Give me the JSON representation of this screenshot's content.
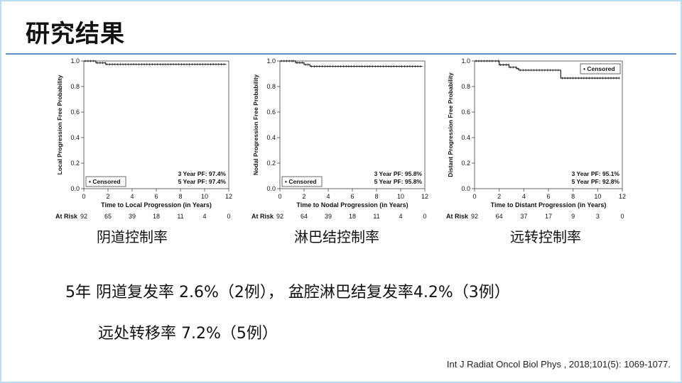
{
  "slide": {
    "title": "研究结果",
    "captions": [
      "阴道控制率",
      "淋巴结控制率",
      "远转控制率"
    ],
    "summary_line1": "5年 阴道复发率 2.6%（2例）， 盆腔淋巴结复发率4.2%（3例）",
    "summary_line2": "远处转移率 7.2%（5例）",
    "citation": "Int J Radiat Oncol Biol Phys , 2018;101(5): 1069-1077.",
    "accent_color": "#5b8fc8"
  },
  "chart_data": [
    {
      "type": "line",
      "ylabel": "Local Progression Free Probability",
      "xlabel": "Time to Local Progression (in Years)",
      "xlim": [
        0,
        12
      ],
      "ylim": [
        0,
        1.0
      ],
      "xticks": [
        0,
        2,
        4,
        6,
        8,
        10,
        12
      ],
      "yticks": [
        "0.0",
        "0.2",
        "0.4",
        "0.6",
        "0.8",
        "1.0"
      ],
      "legend": "Censored",
      "legend_position": "bottom-left",
      "annotations": [
        "3 Year PF: 97.4%",
        "5 Year PF: 97.4%"
      ],
      "at_risk_label": "At Risk",
      "at_risk": [
        "92",
        "65",
        "39",
        "18",
        "11",
        "4",
        "0"
      ],
      "series": [
        {
          "x": [
            0,
            0.9,
            1.0,
            1.8,
            11.8
          ],
          "y": [
            1.0,
            1.0,
            0.985,
            0.974,
            0.974
          ]
        }
      ]
    },
    {
      "type": "line",
      "ylabel": "Nodal Progression Free Probability",
      "xlabel": "Time to Nodal Progression (in Years)",
      "xlim": [
        0,
        12
      ],
      "ylim": [
        0,
        1.0
      ],
      "xticks": [
        0,
        2,
        4,
        6,
        8,
        10,
        12
      ],
      "yticks": [
        "0.0",
        "0.2",
        "0.4",
        "0.6",
        "0.8",
        "1.0"
      ],
      "legend": "Censored",
      "legend_position": "bottom-left",
      "annotations": [
        "3 Year PF: 95.8%",
        "5 Year PF: 95.8%"
      ],
      "at_risk_label": "At Risk",
      "at_risk": [
        "92",
        "64",
        "39",
        "18",
        "11",
        "4",
        "0"
      ],
      "series": [
        {
          "x": [
            0,
            1.0,
            1.3,
            2.0,
            2.5,
            11.8
          ],
          "y": [
            1.0,
            1.0,
            0.986,
            0.972,
            0.958,
            0.958
          ]
        }
      ]
    },
    {
      "type": "line",
      "ylabel": "Distant Progression Free Probability",
      "xlabel": "Time to Distant Progression (in Years)",
      "xlim": [
        0,
        12
      ],
      "ylim": [
        0,
        1.0
      ],
      "xticks": [
        0,
        2,
        4,
        6,
        8,
        10,
        12
      ],
      "yticks": [
        "0.0",
        "0.2",
        "0.4",
        "0.6",
        "0.8",
        "1.0"
      ],
      "legend": "Censored",
      "legend_position": "top-right",
      "annotations": [
        "3 Year PF: 95.1%",
        "5 Year PF: 92.8%"
      ],
      "at_risk_label": "At Risk",
      "at_risk": [
        "92",
        "64",
        "37",
        "17",
        "9",
        "3",
        "0"
      ],
      "series": [
        {
          "x": [
            0,
            1.6,
            2.0,
            2.8,
            3.4,
            3.6,
            6.9,
            7.0,
            11.8
          ],
          "y": [
            1.0,
            1.0,
            0.97,
            0.951,
            0.94,
            0.928,
            0.928,
            0.866,
            0.866
          ]
        }
      ]
    }
  ]
}
